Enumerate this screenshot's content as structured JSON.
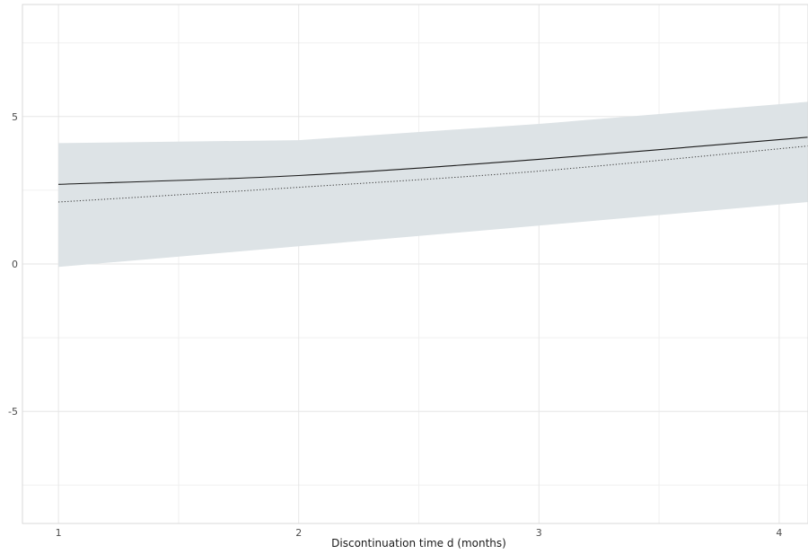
{
  "chart_data": {
    "type": "line",
    "title": "",
    "xlabel": "Discontinuation time d (months)",
    "ylabel": "",
    "xlim": [
      0.85,
      4.12
    ],
    "ylim": [
      -8.8,
      8.8
    ],
    "x_ticks": [
      1,
      2,
      3,
      4
    ],
    "y_ticks": [
      -5,
      0,
      5
    ],
    "x_minor": [
      1.5,
      2.5,
      3.5
    ],
    "y_minor": [
      -7.5,
      -2.5,
      2.5,
      7.5
    ],
    "grid": true,
    "x": [
      1,
      2,
      3,
      4.12
    ],
    "series": [
      {
        "style": "solid",
        "color": "#1a1a1a",
        "values": [
          2.7,
          3.0,
          3.55,
          4.3
        ]
      },
      {
        "style": "dotted",
        "color": "#333333",
        "values": [
          2.1,
          2.6,
          3.15,
          4.0
        ]
      }
    ],
    "band": {
      "color": "#dde3e6",
      "x": [
        1,
        2,
        3,
        4.12
      ],
      "upper": [
        4.1,
        4.2,
        4.75,
        5.5
      ],
      "lower": [
        -0.1,
        0.6,
        1.3,
        2.1
      ]
    }
  }
}
